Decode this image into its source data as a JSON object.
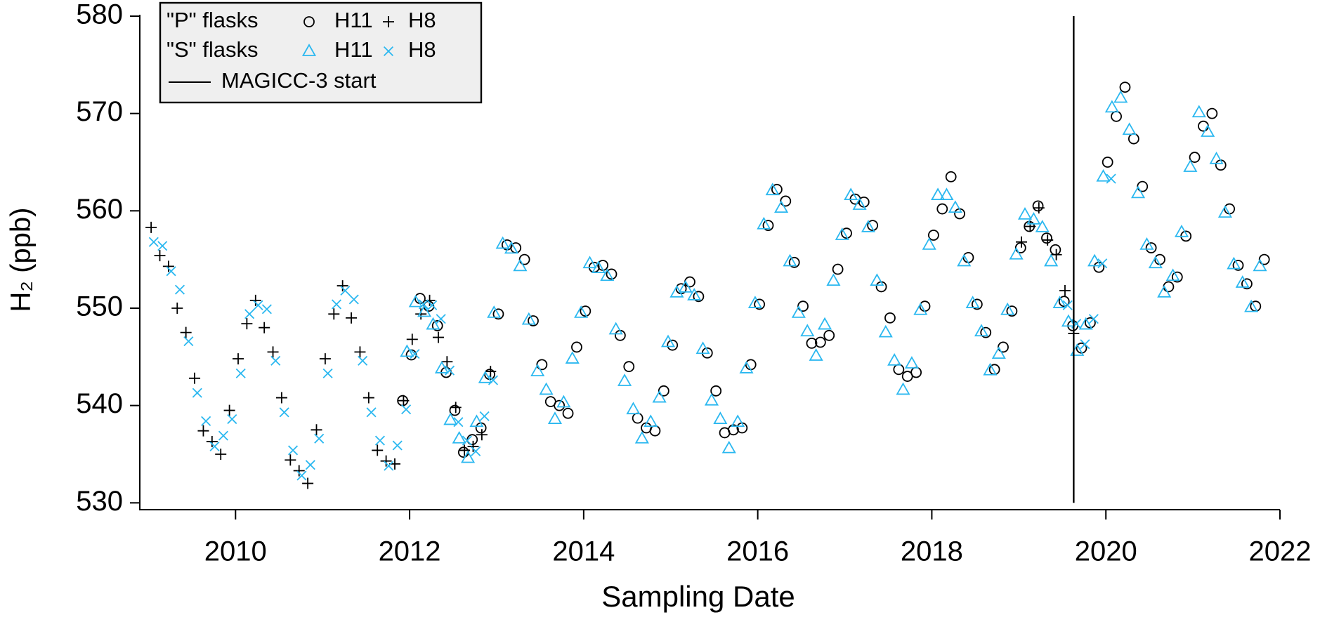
{
  "chart_data": {
    "type": "scatter",
    "xlabel": "Sampling Date",
    "ylabel": "H₂ (ppb)",
    "xlim": [
      2008.9,
      2022
    ],
    "xticks": [
      2010,
      2012,
      2014,
      2016,
      2018,
      2020,
      2022
    ],
    "ylim": [
      529.3,
      580
    ],
    "yticks": [
      530,
      540,
      550,
      560,
      570,
      580
    ],
    "legend": "top-left",
    "groups": [
      {
        "name": "\"P\" flasks",
        "series": [
          {
            "name": "H11",
            "marker": "circle",
            "color": "#000000",
            "x": [
              2011.92,
              2012.02,
              2012.12,
              2012.22,
              2012.32,
              2012.42,
              2012.52,
              2012.62,
              2012.72,
              2012.82,
              2012.92,
              2013.02,
              2013.12,
              2013.22,
              2013.32,
              2013.42,
              2013.52,
              2013.62,
              2013.72,
              2013.82,
              2013.92,
              2014.02,
              2014.12,
              2014.22,
              2014.32,
              2014.42,
              2014.52,
              2014.62,
              2014.72,
              2014.82,
              2014.92,
              2015.02,
              2015.12,
              2015.22,
              2015.32,
              2015.42,
              2015.52,
              2015.62,
              2015.72,
              2015.82,
              2015.92,
              2016.02,
              2016.12,
              2016.22,
              2016.32,
              2016.42,
              2016.52,
              2016.62,
              2016.72,
              2016.82,
              2016.92,
              2017.02,
              2017.12,
              2017.22,
              2017.32,
              2017.42,
              2017.52,
              2017.62,
              2017.72,
              2017.82,
              2017.92,
              2018.02,
              2018.12,
              2018.22,
              2018.32,
              2018.42,
              2018.52,
              2018.62,
              2018.72,
              2018.82,
              2018.92,
              2019.02,
              2019.12,
              2019.22,
              2019.32,
              2019.42,
              2019.52,
              2019.62,
              2019.72,
              2019.82,
              2019.92,
              2020.02,
              2020.12,
              2020.22,
              2020.32,
              2020.42,
              2020.52,
              2020.62,
              2020.72,
              2020.82,
              2020.92,
              2021.02,
              2021.12,
              2021.22,
              2021.32,
              2021.42,
              2021.52,
              2021.62,
              2021.72,
              2021.82
            ],
            "values": [
              540.5,
              545.2,
              551,
              550.2,
              548.2,
              543.4,
              539.5,
              535.2,
              536.5,
              537.7,
              543.2,
              549.4,
              556.5,
              556.2,
              555,
              548.7,
              544.2,
              540.4,
              540,
              539.2,
              546,
              549.7,
              554.2,
              554.4,
              553.5,
              547.2,
              544,
              538.7,
              537.7,
              537.4,
              541.5,
              546.2,
              552,
              552.7,
              551.2,
              545.4,
              541.5,
              537.2,
              537.5,
              537.7,
              544.2,
              550.4,
              558.5,
              562.2,
              561,
              554.7,
              550.2,
              546.4,
              546.5,
              547.2,
              554,
              557.7,
              561.2,
              560.9,
              558.5,
              552.2,
              549,
              543.7,
              543,
              543.4,
              550.2,
              557.5,
              560.2,
              563.5,
              559.7,
              555.2,
              550.4,
              547.5,
              543.7,
              546,
              549.7,
              556.2,
              558.4,
              560.5,
              557.2,
              556,
              550.7,
              548.2,
              545.9,
              548.5,
              554.2,
              565,
              569.7,
              572.7,
              567.4,
              562.5,
              556.2,
              555,
              552.2,
              553.2,
              557.4,
              565.5,
              568.7,
              570,
              564.7,
              560.2,
              554.4,
              552.5,
              550.2,
              555
            ]
          },
          {
            "name": "H8",
            "marker": "plus",
            "color": "#000000",
            "x": [
              2009.03,
              2009.13,
              2009.23,
              2009.33,
              2009.43,
              2009.53,
              2009.63,
              2009.73,
              2009.83,
              2009.93,
              2010.03,
              2010.13,
              2010.23,
              2010.33,
              2010.43,
              2010.53,
              2010.63,
              2010.73,
              2010.83,
              2010.93,
              2011.03,
              2011.13,
              2011.23,
              2011.33,
              2011.43,
              2011.53,
              2011.63,
              2011.73,
              2011.83,
              2011.93,
              2012.03,
              2012.13,
              2012.23,
              2012.33,
              2012.43,
              2012.53,
              2012.63,
              2012.73,
              2012.83,
              2012.93,
              2019.03,
              2019.13,
              2019.23,
              2019.33,
              2019.43,
              2019.53,
              2019.63
            ],
            "values": [
              558.3,
              555.4,
              554.3,
              550,
              547.5,
              542.8,
              537.4,
              536.3,
              535,
              539.5,
              544.8,
              548.4,
              550.8,
              548,
              545.5,
              540.8,
              534.4,
              533.3,
              532,
              537.5,
              544.8,
              549.4,
              552.3,
              549,
              545.5,
              540.8,
              535.4,
              534.3,
              534,
              540.5,
              546.8,
              549.4,
              550.8,
              547,
              544.5,
              539.8,
              535.4,
              535.8,
              537,
              543.5,
              556.8,
              558.4,
              560.3,
              557,
              555.5,
              551.8,
              547.4
            ]
          }
        ]
      },
      {
        "name": "\"S\" flasks",
        "series": [
          {
            "name": "H11",
            "marker": "triangle",
            "color": "#2bb8f0",
            "x": [
              2011.97,
              2012.07,
              2012.17,
              2012.27,
              2012.37,
              2012.47,
              2012.57,
              2012.67,
              2012.77,
              2012.87,
              2012.97,
              2013.07,
              2013.17,
              2013.27,
              2013.37,
              2013.47,
              2013.57,
              2013.67,
              2013.77,
              2013.87,
              2013.97,
              2014.07,
              2014.17,
              2014.27,
              2014.37,
              2014.47,
              2014.57,
              2014.67,
              2014.77,
              2014.87,
              2014.97,
              2015.07,
              2015.17,
              2015.27,
              2015.37,
              2015.47,
              2015.57,
              2015.67,
              2015.77,
              2015.87,
              2015.97,
              2016.07,
              2016.17,
              2016.27,
              2016.37,
              2016.47,
              2016.57,
              2016.67,
              2016.77,
              2016.87,
              2016.97,
              2017.07,
              2017.17,
              2017.27,
              2017.37,
              2017.47,
              2017.57,
              2017.67,
              2017.77,
              2017.87,
              2017.97,
              2018.07,
              2018.17,
              2018.27,
              2018.37,
              2018.47,
              2018.57,
              2018.67,
              2018.77,
              2018.87,
              2018.97,
              2019.07,
              2019.17,
              2019.27,
              2019.37,
              2019.47,
              2019.57,
              2019.67,
              2019.77,
              2019.87,
              2019.97,
              2020.07,
              2020.17,
              2020.27,
              2020.37,
              2020.47,
              2020.57,
              2020.67,
              2020.77,
              2020.87,
              2020.97,
              2021.07,
              2021.17,
              2021.27,
              2021.37,
              2021.47,
              2021.57,
              2021.67,
              2021.77
            ],
            "values": [
              545.5,
              550.6,
              549.6,
              548.3,
              543.8,
              538.5,
              536.6,
              534.6,
              538.3,
              542.8,
              549.5,
              556.6,
              556.1,
              554.3,
              548.8,
              543.5,
              541.6,
              538.6,
              540.3,
              544.8,
              549.5,
              554.6,
              554.1,
              553.3,
              547.8,
              542.5,
              539.6,
              536.6,
              538.3,
              540.8,
              546.5,
              551.6,
              552.1,
              551.3,
              545.8,
              540.5,
              538.6,
              535.6,
              538.3,
              543.8,
              550.5,
              558.6,
              562.1,
              560.3,
              554.8,
              549.5,
              547.6,
              545.1,
              548.3,
              552.8,
              557.5,
              561.6,
              560.6,
              558.3,
              552.8,
              547.5,
              544.6,
              541.6,
              544.3,
              549.8,
              556.5,
              561.6,
              561.6,
              560.3,
              554.8,
              550.5,
              547.6,
              543.6,
              545.3,
              549.8,
              555.5,
              559.6,
              559.1,
              558.3,
              554.8,
              550.5,
              548.6,
              545.6,
              548.3,
              554.8,
              563.5,
              570.6,
              571.6,
              568.3,
              561.8,
              556.5,
              554.6,
              551.6,
              553.3,
              557.8,
              564.5,
              570.1,
              568.1,
              565.3,
              559.8,
              554.5,
              552.6,
              550.1,
              554.3
            ]
          },
          {
            "name": "H8",
            "marker": "cross",
            "color": "#2bb8f0",
            "x": [
              2009.06,
              2009.16,
              2009.26,
              2009.36,
              2009.46,
              2009.56,
              2009.66,
              2009.76,
              2009.86,
              2009.96,
              2010.06,
              2010.16,
              2010.26,
              2010.36,
              2010.46,
              2010.56,
              2010.66,
              2010.76,
              2010.86,
              2010.96,
              2011.06,
              2011.16,
              2011.26,
              2011.36,
              2011.46,
              2011.56,
              2011.66,
              2011.76,
              2011.86,
              2011.96,
              2012.06,
              2012.16,
              2012.26,
              2012.36,
              2012.46,
              2012.56,
              2012.66,
              2012.76,
              2012.86,
              2012.96,
              2019.56,
              2019.66,
              2019.76,
              2019.86,
              2019.96,
              2020.06
            ],
            "values": [
              556.8,
              556.4,
              553.8,
              551.9,
              546.6,
              541.3,
              538.4,
              535.8,
              536.9,
              538.6,
              543.3,
              549.4,
              550.3,
              549.9,
              544.6,
              539.3,
              535.4,
              532.8,
              533.9,
              536.6,
              543.3,
              550.4,
              551.8,
              550.9,
              544.6,
              539.3,
              536.4,
              533.8,
              535.9,
              539.6,
              545.3,
              550.4,
              550.3,
              548.9,
              543.6,
              538.3,
              536.4,
              535.3,
              538.9,
              542.6,
              550.3,
              548.4,
              546.3,
              548.9,
              554.6,
              563.3
            ]
          }
        ]
      }
    ],
    "vline": {
      "x": 2019.63,
      "label": "MAGICC-3 start",
      "color": "#000000"
    }
  }
}
